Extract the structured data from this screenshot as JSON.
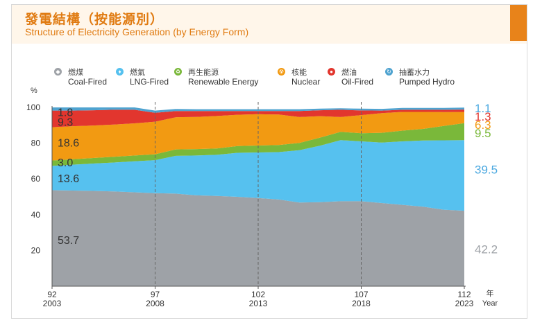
{
  "header": {
    "title_zh": "發電結構（按能源別）",
    "title_en": "Structure of Electricity Generation (by Energy Form)"
  },
  "colors": {
    "accent": "#e8831a",
    "coal": "#9ea2a7",
    "lng": "#56c1ef",
    "renewable": "#7ab83a",
    "nuclear": "#f29a12",
    "oil": "#e2362e",
    "hydro": "#4fa3d0"
  },
  "legend": [
    {
      "key": "coal",
      "icon": "coal-icon",
      "zh": "燃煤",
      "en": "Coal-Fired",
      "color": "#9ea2a7"
    },
    {
      "key": "lng",
      "icon": "gas-flame-icon",
      "zh": "燃氣",
      "en": "LNG-Fired",
      "color": "#56c1ef"
    },
    {
      "key": "renewable",
      "icon": "recycle-icon",
      "zh": "再生能源",
      "en": "Renewable Energy",
      "color": "#7ab83a"
    },
    {
      "key": "nuclear",
      "icon": "radiation-icon",
      "zh": "核能",
      "en": "Nuclear",
      "color": "#f29a12"
    },
    {
      "key": "oil",
      "icon": "oil-drop-icon",
      "zh": "燃油",
      "en": "Oil-Fired",
      "color": "#e2362e"
    },
    {
      "key": "hydro",
      "icon": "water-cycle-icon",
      "zh": "抽蓄水力",
      "en": "Pumped Hydro",
      "color": "#4fa3d0"
    }
  ],
  "chart_data": {
    "type": "area",
    "stacked": true,
    "ylabel": "%",
    "ylim": [
      0,
      100
    ],
    "yticks": [
      20,
      40,
      60,
      80,
      100
    ],
    "xlabel_zh": "年",
    "xlabel_en": "Year",
    "x": [
      2003,
      2004,
      2005,
      2006,
      2007,
      2008,
      2009,
      2010,
      2011,
      2012,
      2013,
      2014,
      2015,
      2016,
      2017,
      2018,
      2019,
      2020,
      2021,
      2022,
      2023
    ],
    "xticks": [
      {
        "x": 2003,
        "roc": "92",
        "ad": "2003"
      },
      {
        "x": 2008,
        "roc": "97",
        "ad": "2008"
      },
      {
        "x": 2013,
        "roc": "102",
        "ad": "2013"
      },
      {
        "x": 2018,
        "roc": "107",
        "ad": "2018"
      },
      {
        "x": 2023,
        "roc": "112",
        "ad": "2023"
      }
    ],
    "dashed_lines": [
      2008,
      2013,
      2018
    ],
    "series": [
      {
        "key": "coal",
        "name": "Coal-Fired",
        "color": "#9ea2a7",
        "values": [
          53.7,
          53.5,
          53.3,
          53.0,
          52.5,
          52.0,
          51.8,
          50.8,
          50.5,
          50.0,
          49.3,
          48.5,
          46.8,
          47.0,
          47.5,
          47.5,
          46.5,
          45.5,
          44.5,
          42.8,
          42.2
        ]
      },
      {
        "key": "lng",
        "name": "LNG-Fired",
        "color": "#56c1ef",
        "values": [
          13.6,
          14.5,
          15.3,
          16.2,
          17.4,
          18.5,
          21.1,
          22.3,
          23.0,
          24.6,
          25.5,
          26.5,
          29.3,
          31.6,
          34.2,
          33.5,
          33.8,
          35.5,
          37.0,
          38.8,
          39.5
        ]
      },
      {
        "key": "renewable",
        "name": "Renewable Energy",
        "color": "#7ab83a",
        "values": [
          3.0,
          3.0,
          3.1,
          3.2,
          3.2,
          3.3,
          3.6,
          3.6,
          3.5,
          3.8,
          3.9,
          4.0,
          4.0,
          4.5,
          4.6,
          4.6,
          5.5,
          6.0,
          6.5,
          8.0,
          9.5
        ]
      },
      {
        "key": "nuclear",
        "name": "Nuclear",
        "color": "#f29a12",
        "values": [
          18.6,
          18.5,
          18.2,
          18.0,
          18.0,
          18.2,
          18.0,
          18.0,
          18.2,
          17.5,
          17.5,
          17.0,
          14.5,
          12.0,
          8.3,
          10.1,
          11.0,
          10.5,
          9.5,
          7.8,
          6.3
        ]
      },
      {
        "key": "oil",
        "name": "Oil-Fired",
        "color": "#e2362e",
        "values": [
          9.3,
          8.7,
          8.5,
          8.3,
          7.6,
          5.0,
          3.5,
          3.3,
          2.8,
          2.1,
          1.8,
          2.0,
          3.4,
          3.3,
          4.1,
          2.6,
          1.4,
          1.2,
          1.2,
          1.3,
          1.3
        ]
      },
      {
        "key": "hydro",
        "name": "Pumped Hydro",
        "color": "#4fa3d0",
        "values": [
          1.8,
          1.8,
          1.6,
          1.3,
          1.3,
          1.2,
          1.1,
          1.0,
          1.0,
          1.0,
          1.0,
          1.0,
          1.0,
          0.9,
          0.8,
          1.0,
          1.0,
          1.0,
          1.0,
          1.0,
          1.1
        ]
      }
    ],
    "start_labels": [
      {
        "text": "1.8",
        "y": 97.5,
        "color": "#333333"
      },
      {
        "text": "9.3",
        "y": 92.0,
        "color": "#333333"
      },
      {
        "text": "18.6",
        "y": 80.5,
        "color": "#333333"
      },
      {
        "text": "3.0",
        "y": 69.3,
        "color": "#333333"
      },
      {
        "text": "13.6",
        "y": 60.5,
        "color": "#333333"
      },
      {
        "text": "53.7",
        "y": 26.0,
        "color": "#333333"
      }
    ],
    "end_labels": [
      {
        "text": "1.1",
        "y": 99.6,
        "color": "#4aa8e0"
      },
      {
        "text": "1.3",
        "y": 95.0,
        "color": "#e2362e"
      },
      {
        "text": "6.3",
        "y": 90.3,
        "color": "#f29a12"
      },
      {
        "text": "9.5",
        "y": 85.7,
        "color": "#7ab83a"
      },
      {
        "text": "39.5",
        "y": 65.3,
        "color": "#4aa8e0"
      },
      {
        "text": "42.2",
        "y": 20.7,
        "color": "#9ea2a7"
      }
    ]
  }
}
